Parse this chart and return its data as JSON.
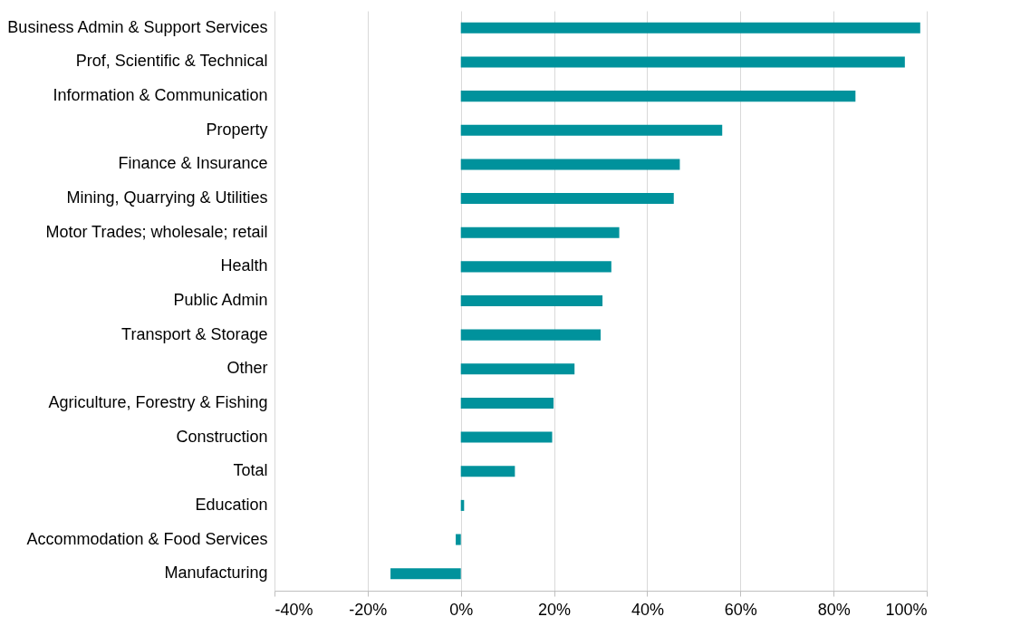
{
  "chart_data": {
    "type": "bar",
    "orientation": "horizontal",
    "color": "#00929c",
    "grid": "x",
    "categories": [
      "Business Admin & Support Services",
      "Prof, Scientific & Technical",
      "Information & Communication",
      "Property",
      "Finance & Insurance",
      "Mining, Quarrying & Utilities",
      "Motor Trades; wholesale; retail",
      "Health",
      "Public Admin",
      "Transport & Storage",
      "Other",
      "Agriculture, Forestry & Fishing",
      "Construction",
      "Total",
      "Education",
      "Accommodation & Food Services",
      "Manufacturing"
    ],
    "values": [
      98.6,
      95.3,
      84.7,
      56.1,
      47,
      45.7,
      34,
      32.3,
      30.4,
      30,
      24.4,
      19.9,
      19.6,
      11.6,
      0.7,
      -1.1,
      -15.1
    ],
    "xlim": [
      -40,
      100
    ],
    "xticks": [
      {
        "value": -40,
        "label": "-40%"
      },
      {
        "value": -20,
        "label": "-20%"
      },
      {
        "value": 0,
        "label": "0%"
      },
      {
        "value": 20,
        "label": "20%"
      },
      {
        "value": 40,
        "label": "40%"
      },
      {
        "value": 60,
        "label": "60%"
      },
      {
        "value": 80,
        "label": "80%"
      },
      {
        "value": 100,
        "label": "100%"
      }
    ]
  }
}
